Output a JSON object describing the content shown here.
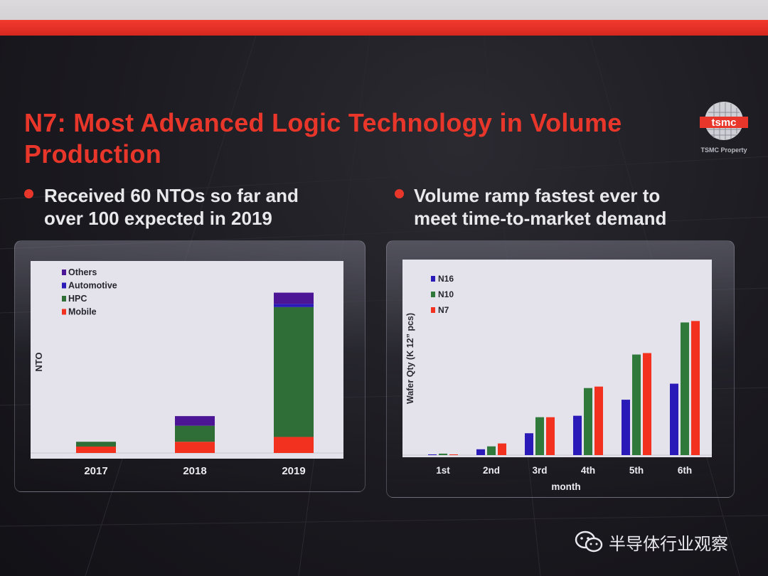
{
  "slide": {
    "title_line1": "N7: Most Advanced Logic Technology in Volume",
    "title_line2": "Production",
    "logo_text": "tsmc",
    "logo_subtext": "TSMC Property",
    "bullets": [
      {
        "line1": "Received 60 NTOs so far and",
        "line2": "over 100 expected in 2019"
      },
      {
        "line1": "Volume ramp fastest ever to",
        "line2": "meet time-to-market demand"
      }
    ],
    "watermark": "半导体行业观察",
    "colors": {
      "accent": "#e8362b",
      "background": "#1b1a1f",
      "others": "#4b1596",
      "automotive": "#2a1bb8",
      "hpc": "#2f6e36",
      "mobile": "#f2321f",
      "n16": "#2a1bb8",
      "n10": "#2f7a3b",
      "n7": "#f2321f"
    }
  },
  "chart_data": [
    {
      "type": "bar",
      "stacked": true,
      "categories": [
        "2017",
        "2018",
        "2019"
      ],
      "ylabel": "NTO",
      "xlabel": "",
      "ylim": [
        0,
        110
      ],
      "grid": false,
      "legend_position": "top-left",
      "series": [
        {
          "name": "Mobile",
          "color": "#f2321f",
          "values": [
            4,
            7,
            10
          ]
        },
        {
          "name": "HPC",
          "color": "#2f6e36",
          "values": [
            3,
            10,
            81
          ]
        },
        {
          "name": "Automotive",
          "color": "#2a1bb8",
          "values": [
            0,
            0,
            2
          ]
        },
        {
          "name": "Others",
          "color": "#4b1596",
          "values": [
            0,
            6,
            7
          ]
        }
      ],
      "legend_order": [
        "Others",
        "Automotive",
        "HPC",
        "Mobile"
      ]
    },
    {
      "type": "bar",
      "categories": [
        "1st",
        "2nd",
        "3rd",
        "4th",
        "5th",
        "6th"
      ],
      "xlabel": "month",
      "ylabel": "Wafer Qty (K 12” pcs)",
      "ylim": [
        0,
        100
      ],
      "grid": false,
      "legend_position": "top-left",
      "series": [
        {
          "name": "N16",
          "color": "#2a1bb8",
          "values": [
            0.5,
            4,
            15,
            27,
            38,
            49
          ]
        },
        {
          "name": "N10",
          "color": "#2f7a3b",
          "values": [
            1,
            6,
            26,
            46,
            69,
            91
          ]
        },
        {
          "name": "N7",
          "color": "#f2321f",
          "values": [
            0.5,
            8,
            26,
            47,
            70,
            92
          ]
        }
      ]
    }
  ]
}
